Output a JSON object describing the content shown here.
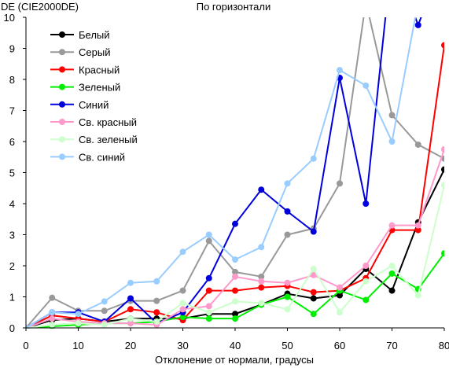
{
  "chart_data": {
    "type": "line",
    "title": "По горизонтали",
    "ylabel": "DE (CIE2000DE)",
    "xlabel": "Отклонение от нормали, градусы",
    "xlim": [
      0,
      80
    ],
    "ylim": [
      0,
      10
    ],
    "xticks": [
      0,
      10,
      20,
      30,
      40,
      50,
      60,
      70,
      80
    ],
    "yticks": [
      0,
      1,
      2,
      3,
      4,
      5,
      6,
      7,
      8,
      9,
      10
    ],
    "grid": false,
    "legend_position": "top-left",
    "x": [
      0,
      5,
      10,
      15,
      20,
      25,
      30,
      35,
      40,
      45,
      50,
      55,
      60,
      65,
      70,
      75,
      80
    ],
    "series": [
      {
        "name": "Белый",
        "color": "#000000",
        "values": [
          0,
          0.25,
          0.3,
          0.2,
          0.3,
          0.3,
          0.3,
          0.45,
          0.45,
          0.75,
          1.1,
          0.95,
          1.05,
          1.9,
          1.2,
          3.4,
          5.1
        ]
      },
      {
        "name": "Серый",
        "color": "#999999",
        "values": [
          0,
          0.97,
          0.55,
          0.55,
          0.87,
          0.87,
          1.2,
          2.8,
          1.8,
          1.65,
          3.0,
          3.2,
          4.65,
          10.5,
          6.85,
          5.9,
          5.45
        ]
      },
      {
        "name": "Красный",
        "color": "#ff0000",
        "values": [
          0,
          0.4,
          0.3,
          0.2,
          0.6,
          0.5,
          0.25,
          1.2,
          1.2,
          1.3,
          1.35,
          1.15,
          1.2,
          1.6,
          3.15,
          3.15,
          9.1
        ]
      },
      {
        "name": "Зеленый",
        "color": "#00ee00",
        "values": [
          0,
          0.05,
          0.1,
          0.15,
          0.15,
          0.2,
          0.35,
          0.3,
          0.3,
          0.75,
          1.0,
          0.45,
          1.2,
          0.9,
          1.75,
          1.25,
          2.4
        ]
      },
      {
        "name": "Синий",
        "color": "#0000dd",
        "values": [
          0,
          0.5,
          0.5,
          0.2,
          0.95,
          0.15,
          0.5,
          1.6,
          3.35,
          4.45,
          3.75,
          3.1,
          8.05,
          4.0,
          12.0,
          9.75,
          12.0
        ]
      },
      {
        "name": "Св. красный",
        "color": "#ff99cc",
        "values": [
          0,
          0.3,
          0.2,
          0.15,
          0.15,
          0.1,
          0.6,
          0.7,
          1.65,
          1.5,
          1.45,
          1.7,
          1.3,
          2.0,
          3.3,
          3.3,
          5.75
        ]
      },
      {
        "name": "Св. зеленый",
        "color": "#ccffcc",
        "values": [
          0,
          0.1,
          0.15,
          0.1,
          0.3,
          0.2,
          0.8,
          0.5,
          0.85,
          0.8,
          0.6,
          1.9,
          0.5,
          1.5,
          2.0,
          1.05,
          4.6
        ]
      },
      {
        "name": "Св. синий",
        "color": "#99ccff",
        "values": [
          0,
          0.5,
          0.45,
          0.85,
          1.45,
          1.5,
          2.45,
          3.0,
          2.2,
          2.6,
          4.65,
          5.45,
          8.3,
          7.8,
          6.0,
          10.5,
          10.5
        ]
      }
    ]
  }
}
